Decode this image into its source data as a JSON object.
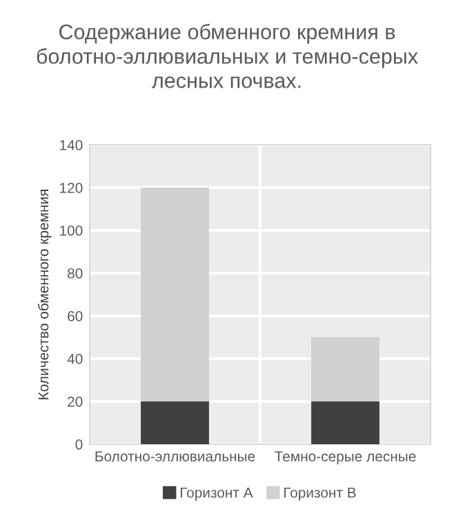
{
  "chart_data": {
    "type": "bar",
    "title": "Содержание обменного кремния в болотно-эллювиальных и темно-серых лесных почвах.",
    "ylabel": "Количество обменного кремния",
    "categories": [
      "Болотно-эллювиальные",
      "Темно-серые лесные"
    ],
    "stacked": true,
    "series": [
      {
        "name": "Горизонт А",
        "color": "#404040",
        "values": [
          20,
          20
        ]
      },
      {
        "name": "Горизонт В",
        "color": "#d0d0d0",
        "values": [
          100,
          30
        ]
      }
    ],
    "ylim": [
      0,
      140
    ],
    "yticks": [
      0,
      20,
      40,
      60,
      80,
      100,
      120,
      140
    ],
    "grid": true,
    "legend": "bottom"
  }
}
